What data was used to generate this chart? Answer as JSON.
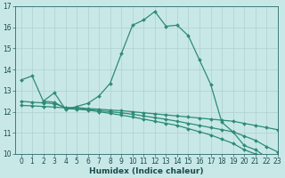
{
  "xlabel": "Humidex (Indice chaleur)",
  "line_color": "#2e8b74",
  "bg_color": "#c8e8e8",
  "grid_color": "#b0d0d0",
  "xlim": [
    -0.5,
    23
  ],
  "ylim": [
    10,
    17
  ],
  "yticks": [
    10,
    11,
    12,
    13,
    14,
    15,
    16,
    17
  ],
  "xticks": [
    0,
    1,
    2,
    3,
    4,
    5,
    6,
    7,
    8,
    9,
    10,
    11,
    12,
    13,
    14,
    15,
    16,
    17,
    18,
    19,
    20,
    21,
    22,
    23
  ],
  "line1_x": [
    0,
    1,
    2,
    3,
    4,
    5,
    6,
    7,
    8,
    9,
    10,
    11,
    12,
    13,
    14,
    15,
    16,
    17,
    18,
    19,
    20,
    21,
    22
  ],
  "line1_y": [
    13.5,
    13.7,
    12.5,
    12.9,
    12.1,
    12.25,
    12.4,
    12.75,
    13.35,
    14.75,
    16.1,
    16.35,
    16.75,
    16.05,
    16.1,
    15.6,
    14.45,
    13.3,
    11.5,
    11.05,
    10.4,
    10.2,
    9.85
  ],
  "line2_x": [
    0,
    1,
    2,
    3,
    4,
    5,
    6,
    7,
    8,
    9,
    10,
    11,
    12,
    13,
    14,
    15,
    16,
    17,
    18,
    19,
    20,
    21,
    22,
    23
  ],
  "line2_y": [
    12.5,
    12.45,
    12.42,
    12.38,
    12.2,
    12.2,
    12.15,
    12.12,
    12.08,
    12.05,
    12.0,
    11.95,
    11.9,
    11.85,
    11.8,
    11.75,
    11.7,
    11.65,
    11.6,
    11.55,
    11.45,
    11.35,
    11.25,
    11.15
  ],
  "line3_x": [
    0,
    1,
    2,
    3,
    4,
    5,
    6,
    7,
    8,
    9,
    10,
    11,
    12,
    13,
    14,
    15,
    16,
    17,
    18,
    19,
    20,
    21,
    22,
    23
  ],
  "line3_y": [
    12.3,
    12.28,
    12.25,
    12.22,
    12.18,
    12.15,
    12.1,
    12.05,
    12.0,
    11.95,
    11.88,
    11.8,
    11.72,
    11.64,
    11.55,
    11.45,
    11.35,
    11.25,
    11.15,
    11.05,
    10.85,
    10.65,
    10.35,
    10.1
  ],
  "line4_x": [
    2,
    3,
    4,
    5,
    6,
    7,
    8,
    9,
    10,
    11,
    12,
    13,
    14,
    15,
    16,
    17,
    18,
    19,
    20,
    21,
    22,
    23
  ],
  "line4_y": [
    12.5,
    12.45,
    12.15,
    12.12,
    12.08,
    12.0,
    11.92,
    11.84,
    11.75,
    11.65,
    11.55,
    11.45,
    11.35,
    11.2,
    11.05,
    10.9,
    10.7,
    10.5,
    10.2,
    10.0,
    9.75,
    9.55
  ],
  "marker": "D",
  "markersize": 2.0,
  "linewidth": 0.9,
  "tick_fontsize": 5.5,
  "label_fontsize": 6.5
}
